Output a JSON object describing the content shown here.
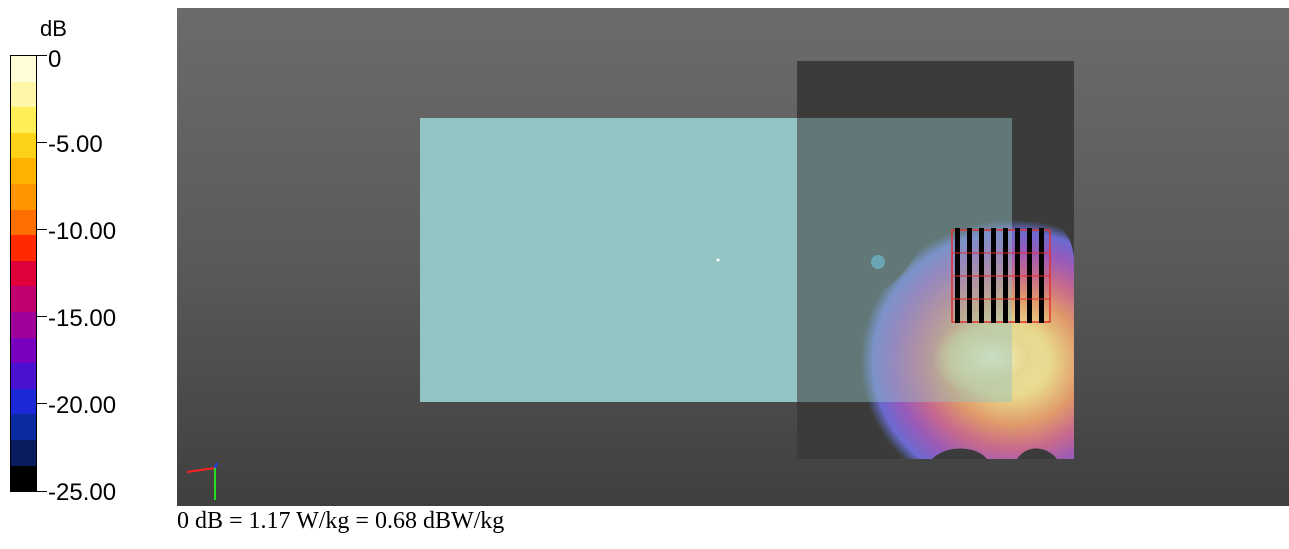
{
  "colorbar": {
    "unit": "dB",
    "ticks": [
      "0",
      "-5.00",
      "-10.00",
      "-15.00",
      "-20.00",
      "-25.00"
    ],
    "colors": [
      "#fffcd8",
      "#fff6a8",
      "#ffee55",
      "#ffd21a",
      "#ffb200",
      "#ff9600",
      "#ff6e00",
      "#ff2a00",
      "#e0003a",
      "#c0006e",
      "#a0009a",
      "#7a00c0",
      "#4a12d0",
      "#1a28d8",
      "#0a2aa0",
      "#0a1c60",
      "#000000"
    ]
  },
  "caption": "0 dB = 1.17 W/kg = 0.68 dBW/kg",
  "viewport": {
    "background": "#5a5a5a",
    "phantom_color": "#93c4c4",
    "board_color": "#3a3a3a",
    "hotspot_color": "#f8f0b0",
    "axis_colors": [
      "#ff2020",
      "#20e020",
      "#2040ff"
    ]
  }
}
